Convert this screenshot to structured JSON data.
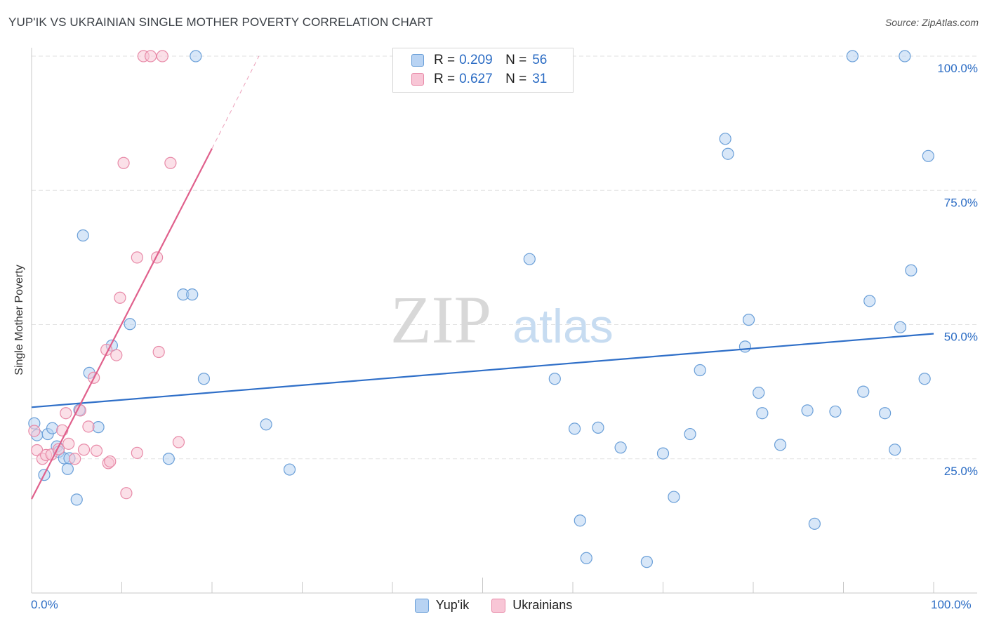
{
  "header": {
    "title": "YUP'IK VS UKRAINIAN SINGLE MOTHER POVERTY CORRELATION CHART",
    "source": "Source: ZipAtlas.com"
  },
  "watermark": {
    "zip": "ZIP",
    "atlas": "atlas"
  },
  "colors": {
    "blue_fill": "#b8d3f3",
    "blue_stroke": "#6a9fd8",
    "blue_line": "#2f6fc8",
    "pink_fill": "#f8c6d6",
    "pink_stroke": "#e88aa8",
    "pink_line": "#e0608c",
    "tick_text": "#2b6cc4"
  },
  "legend": {
    "rows": [
      {
        "r_label": "R =",
        "r_value": "0.209",
        "n_label": "N =",
        "n_value": "56"
      },
      {
        "r_label": "R =",
        "r_value": "0.627",
        "n_label": "N =",
        "n_value": "31"
      }
    ]
  },
  "bottom_legend": {
    "series1": "Yup'ik",
    "series2": "Ukrainians"
  },
  "chart_data": {
    "type": "scatter",
    "title": "YUP'IK VS UKRAINIAN SINGLE MOTHER POVERTY CORRELATION CHART",
    "xlabel": "",
    "ylabel": "Single Mother Poverty",
    "xlim": [
      0,
      100
    ],
    "ylim": [
      0,
      100
    ],
    "x_tick_labels": [
      "0.0%",
      "100.0%"
    ],
    "y_ticks": [
      25,
      50,
      75,
      100
    ],
    "y_tick_labels": [
      "25.0%",
      "50.0%",
      "75.0%",
      "100.0%"
    ],
    "grid": true,
    "series": [
      {
        "name": "Yup'ik",
        "color": "#6a9fd8",
        "r": 0.209,
        "n": 56,
        "trend": {
          "x": [
            0,
            100
          ],
          "y": [
            34.6,
            48.3
          ]
        },
        "points": [
          [
            0.3,
            31.6
          ],
          [
            0.6,
            29.4
          ],
          [
            1.4,
            22.0
          ],
          [
            1.8,
            29.6
          ],
          [
            2.3,
            30.7
          ],
          [
            2.8,
            27.3
          ],
          [
            3.0,
            26.3
          ],
          [
            3.6,
            25.1
          ],
          [
            4.0,
            23.1
          ],
          [
            4.2,
            25.1
          ],
          [
            5.0,
            17.4
          ],
          [
            5.3,
            34.1
          ],
          [
            5.7,
            66.6
          ],
          [
            6.4,
            41.0
          ],
          [
            7.4,
            30.9
          ],
          [
            8.9,
            46.1
          ],
          [
            10.9,
            50.1
          ],
          [
            15.2,
            25.0
          ],
          [
            16.8,
            55.6
          ],
          [
            17.8,
            55.6
          ],
          [
            18.2,
            100.0
          ],
          [
            19.1,
            39.9
          ],
          [
            26.0,
            31.4
          ],
          [
            28.6,
            23.0
          ],
          [
            55.2,
            62.2
          ],
          [
            58.0,
            39.9
          ],
          [
            60.2,
            30.6
          ],
          [
            60.8,
            13.5
          ],
          [
            61.5,
            6.5
          ],
          [
            62.8,
            30.8
          ],
          [
            65.3,
            27.1
          ],
          [
            68.2,
            5.8
          ],
          [
            70.0,
            26.0
          ],
          [
            71.2,
            17.9
          ],
          [
            73.0,
            29.6
          ],
          [
            74.1,
            41.5
          ],
          [
            76.9,
            84.6
          ],
          [
            77.2,
            81.8
          ],
          [
            79.1,
            45.9
          ],
          [
            79.5,
            50.9
          ],
          [
            80.6,
            37.3
          ],
          [
            81.0,
            33.5
          ],
          [
            83.0,
            27.6
          ],
          [
            86.0,
            34.0
          ],
          [
            86.8,
            12.9
          ],
          [
            89.1,
            33.8
          ],
          [
            91.0,
            100.0
          ],
          [
            92.2,
            37.5
          ],
          [
            92.9,
            54.4
          ],
          [
            94.6,
            33.5
          ],
          [
            95.7,
            26.7
          ],
          [
            96.3,
            49.5
          ],
          [
            96.8,
            100.0
          ],
          [
            97.5,
            60.1
          ],
          [
            99.0,
            39.9
          ],
          [
            99.4,
            81.4
          ]
        ]
      },
      {
        "name": "Ukrainians",
        "color": "#e88aa8",
        "r": 0.627,
        "n": 31,
        "trend": {
          "x": [
            0,
            20
          ],
          "y": [
            17.5,
            82.8
          ]
        },
        "trend_dashed": {
          "x": [
            20,
            25.2
          ],
          "y": [
            82.8,
            100.0
          ]
        },
        "points": [
          [
            0.3,
            30.2
          ],
          [
            0.6,
            26.6
          ],
          [
            1.2,
            25.0
          ],
          [
            1.6,
            25.7
          ],
          [
            2.2,
            25.8
          ],
          [
            3.0,
            26.8
          ],
          [
            3.4,
            30.3
          ],
          [
            3.8,
            33.5
          ],
          [
            4.1,
            27.8
          ],
          [
            4.8,
            25.0
          ],
          [
            5.4,
            34.0
          ],
          [
            5.8,
            26.7
          ],
          [
            6.3,
            31.0
          ],
          [
            6.9,
            40.1
          ],
          [
            7.2,
            26.5
          ],
          [
            8.3,
            45.3
          ],
          [
            8.5,
            24.2
          ],
          [
            8.7,
            24.5
          ],
          [
            9.4,
            44.3
          ],
          [
            9.8,
            55.0
          ],
          [
            10.2,
            80.1
          ],
          [
            10.5,
            18.6
          ],
          [
            11.7,
            26.1
          ],
          [
            11.7,
            62.5
          ],
          [
            12.4,
            100.0
          ],
          [
            13.2,
            100.0
          ],
          [
            13.9,
            62.5
          ],
          [
            14.1,
            44.9
          ],
          [
            14.5,
            100.0
          ],
          [
            15.4,
            80.1
          ],
          [
            16.3,
            28.1
          ]
        ]
      }
    ]
  }
}
